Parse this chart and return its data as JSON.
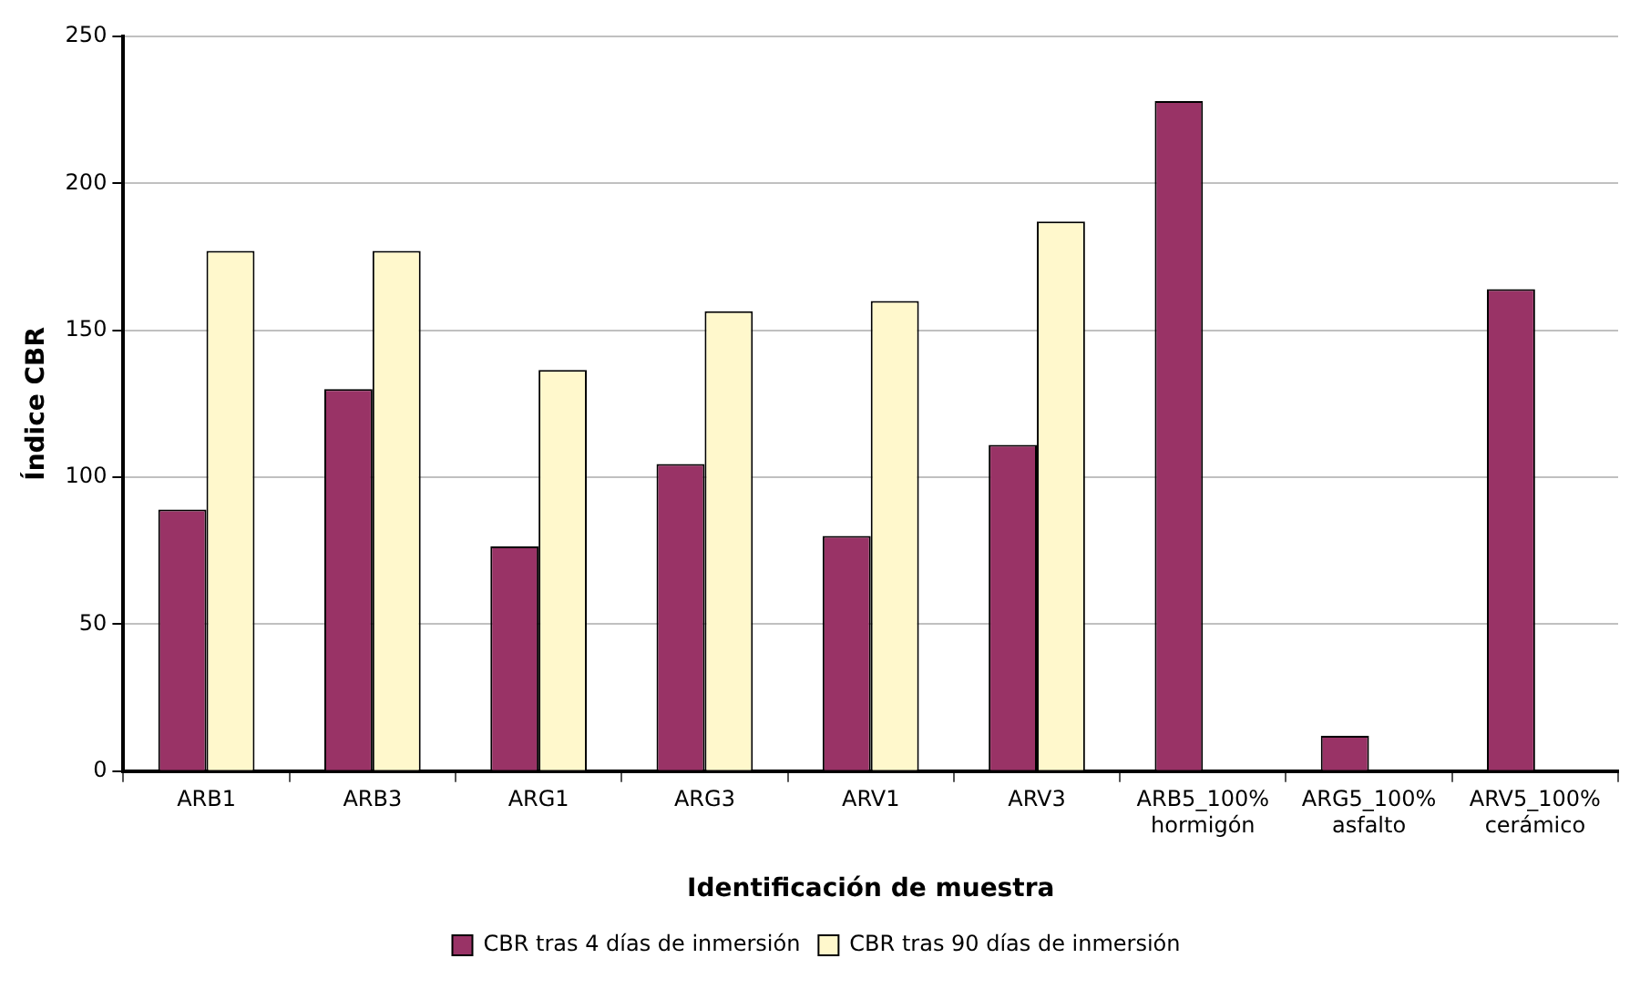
{
  "chart_data": {
    "type": "bar",
    "xlabel": "Identificación de muestra",
    "ylabel": "Índice CBR",
    "categories": [
      "ARB1",
      "ARB3",
      "ARG1",
      "ARG3",
      "ARV1",
      "ARV3",
      "ARB5_100%\nhormigón",
      "ARG5_100%\nasfalto",
      "ARV5_100%\ncerámico"
    ],
    "series": [
      {
        "name": "CBR tras 4 días de inmersión",
        "color": "#993366",
        "values": [
          89,
          130,
          76.5,
          104.5,
          80,
          111,
          228,
          12,
          164
        ]
      },
      {
        "name": "CBR tras 90 días de inmersión",
        "color": "#fff8cc",
        "values": [
          177,
          177,
          136.5,
          156.5,
          160,
          187,
          null,
          null,
          null
        ]
      }
    ],
    "ylim": [
      0,
      250
    ],
    "yticks": [
      0,
      50,
      100,
      150,
      200,
      250
    ],
    "grid": "y",
    "legend": "bottom"
  }
}
